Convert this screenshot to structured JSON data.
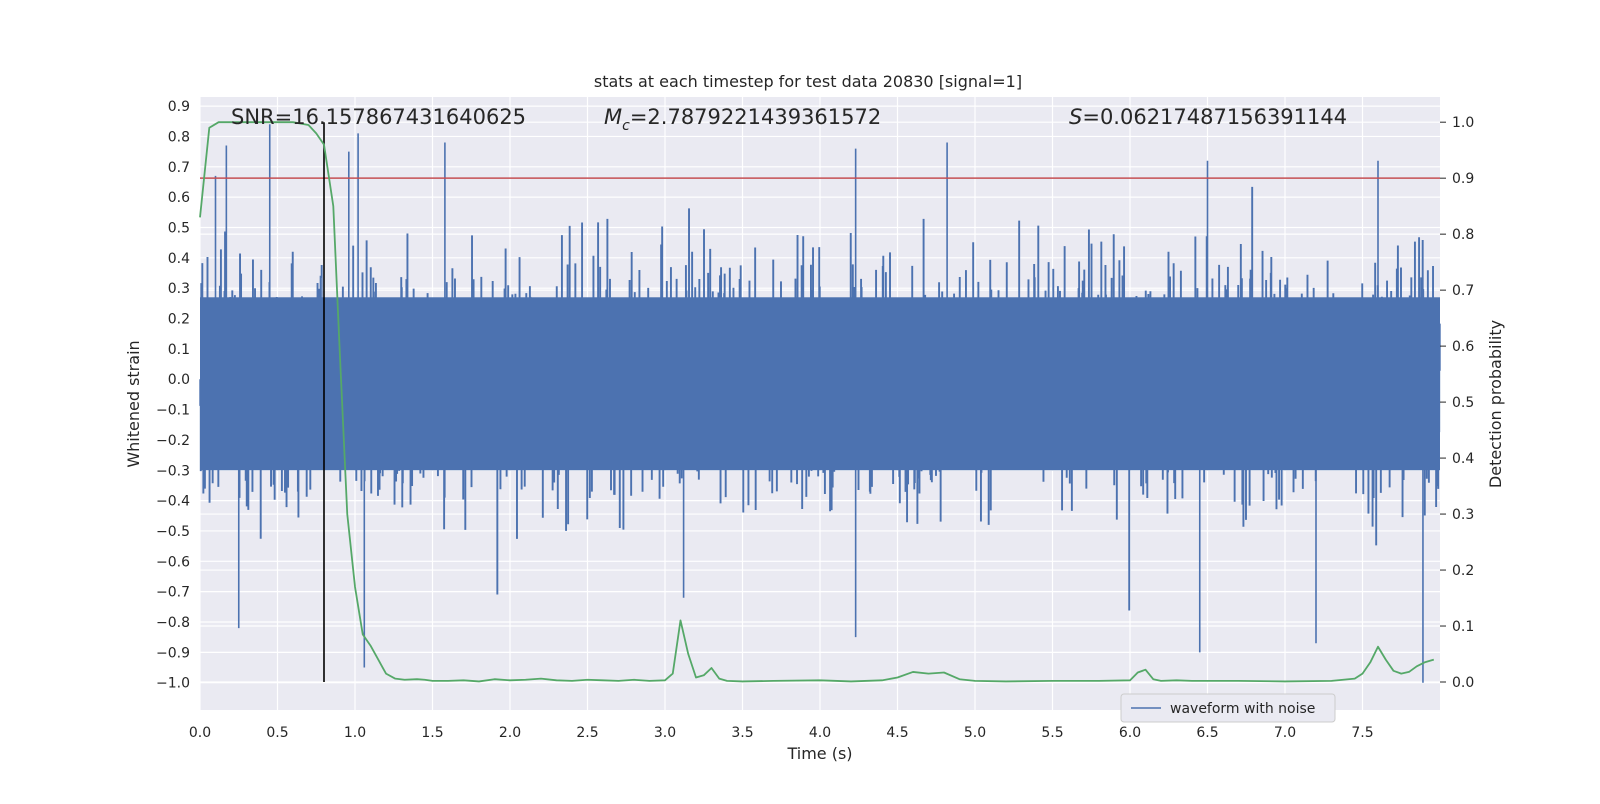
{
  "chart_data": {
    "type": "line",
    "title": "stats at each timestep for test data 20830 [signal=1]",
    "xlabel": "Time (s)",
    "ylabel_left": "Whitened strain",
    "ylabel_right": "Detection probability",
    "xlim": [
      0.0,
      8.0
    ],
    "ylim_left": [
      -1.09,
      0.93
    ],
    "ylim_right": [
      -0.05,
      1.045
    ],
    "grid": true,
    "xticks": [
      "0.0",
      "0.5",
      "1.0",
      "1.5",
      "2.0",
      "2.5",
      "3.0",
      "3.5",
      "4.0",
      "4.5",
      "5.0",
      "5.5",
      "6.0",
      "6.5",
      "7.0",
      "7.5"
    ],
    "yticks_left": [
      "0.9",
      "0.8",
      "0.7",
      "0.6",
      "0.5",
      "0.4",
      "0.3",
      "0.2",
      "0.1",
      "0.0",
      "−0.1",
      "−0.2",
      "−0.3",
      "−0.4",
      "−0.5",
      "−0.6",
      "−0.7",
      "−0.8",
      "−0.9",
      "−1.0"
    ],
    "yticks_right": [
      "1.0",
      "0.9",
      "0.8",
      "0.7",
      "0.6",
      "0.5",
      "0.4",
      "0.3",
      "0.2",
      "0.1",
      "0.0"
    ],
    "annotations": {
      "snr": "SNR=16.157867431640625",
      "mc_symbol": "M",
      "mc_subscript": "c",
      "mc_value": "=2.7879221439361572",
      "s_symbol": "S",
      "s_value": "=0.06217487156391144"
    },
    "threshold_probability": 0.9,
    "marker_time": 0.8,
    "legend": {
      "position": "lower-center-right",
      "entries": [
        "waveform with noise"
      ]
    },
    "series": [
      {
        "name": "waveform with noise",
        "axis": "left",
        "kind": "noise",
        "amplitude": 0.5,
        "samples_from": 0.0,
        "samples_to": 8.0,
        "spikes": [
          {
            "t": 0.1,
            "v": 0.67
          },
          {
            "t": 0.17,
            "v": 0.77
          },
          {
            "t": 0.25,
            "v": -0.82
          },
          {
            "t": 0.45,
            "v": 0.84
          },
          {
            "t": 0.96,
            "v": 0.75
          },
          {
            "t": 1.02,
            "v": 0.81
          },
          {
            "t": 1.06,
            "v": -0.95
          },
          {
            "t": 1.58,
            "v": 0.78
          },
          {
            "t": 3.12,
            "v": -0.72
          },
          {
            "t": 4.23,
            "v": 0.76
          },
          {
            "t": 4.23,
            "v": -0.85
          },
          {
            "t": 4.82,
            "v": 0.78
          },
          {
            "t": 6.5,
            "v": 0.72
          },
          {
            "t": 6.45,
            "v": -0.9
          },
          {
            "t": 7.2,
            "v": -0.87
          },
          {
            "t": 7.6,
            "v": 0.72
          },
          {
            "t": 7.89,
            "v": -1.0
          }
        ]
      },
      {
        "name": "Detection probability",
        "axis": "right",
        "kind": "line",
        "x": [
          0.0,
          0.06,
          0.12,
          0.2,
          0.3,
          0.4,
          0.5,
          0.6,
          0.7,
          0.75,
          0.8,
          0.86,
          0.9,
          0.95,
          1.0,
          1.05,
          1.1,
          1.15,
          1.2,
          1.26,
          1.32,
          1.4,
          1.45,
          1.5,
          1.6,
          1.7,
          1.8,
          1.9,
          2.0,
          2.1,
          2.2,
          2.3,
          2.4,
          2.5,
          2.6,
          2.7,
          2.8,
          2.9,
          3.0,
          3.05,
          3.1,
          3.15,
          3.2,
          3.25,
          3.3,
          3.35,
          3.4,
          3.5,
          3.7,
          4.0,
          4.2,
          4.4,
          4.5,
          4.6,
          4.7,
          4.8,
          4.9,
          5.0,
          5.2,
          5.5,
          5.8,
          6.0,
          6.05,
          6.1,
          6.15,
          6.2,
          6.3,
          6.4,
          6.5,
          6.7,
          7.0,
          7.3,
          7.45,
          7.5,
          7.55,
          7.6,
          7.65,
          7.7,
          7.75,
          7.8,
          7.85,
          7.9,
          7.96
        ],
        "y": [
          0.83,
          0.99,
          1.0,
          1.0,
          1.0,
          1.0,
          1.0,
          1.0,
          0.995,
          0.98,
          0.96,
          0.85,
          0.6,
          0.3,
          0.17,
          0.085,
          0.065,
          0.04,
          0.015,
          0.006,
          0.004,
          0.005,
          0.004,
          0.002,
          0.002,
          0.003,
          0.001,
          0.005,
          0.003,
          0.004,
          0.006,
          0.003,
          0.002,
          0.004,
          0.003,
          0.002,
          0.004,
          0.002,
          0.003,
          0.015,
          0.11,
          0.05,
          0.008,
          0.012,
          0.025,
          0.006,
          0.002,
          0.001,
          0.002,
          0.003,
          0.001,
          0.003,
          0.008,
          0.018,
          0.015,
          0.017,
          0.005,
          0.002,
          0.001,
          0.002,
          0.002,
          0.003,
          0.017,
          0.022,
          0.005,
          0.002,
          0.003,
          0.002,
          0.002,
          0.002,
          0.001,
          0.002,
          0.006,
          0.015,
          0.035,
          0.063,
          0.04,
          0.02,
          0.015,
          0.018,
          0.028,
          0.035,
          0.04
        ]
      },
      {
        "name": "Threshold",
        "axis": "right",
        "kind": "hline",
        "value": 0.9
      }
    ]
  },
  "colors": {
    "plot_background": "#eaeaf2",
    "grid": "#ffffff",
    "waveform": "#4c72b0",
    "probability": "#55a868",
    "threshold": "#c44e52",
    "marker": "#000000",
    "text": "#262626",
    "legend_background": "#eaeaf2",
    "legend_border": "#cccccc"
  }
}
